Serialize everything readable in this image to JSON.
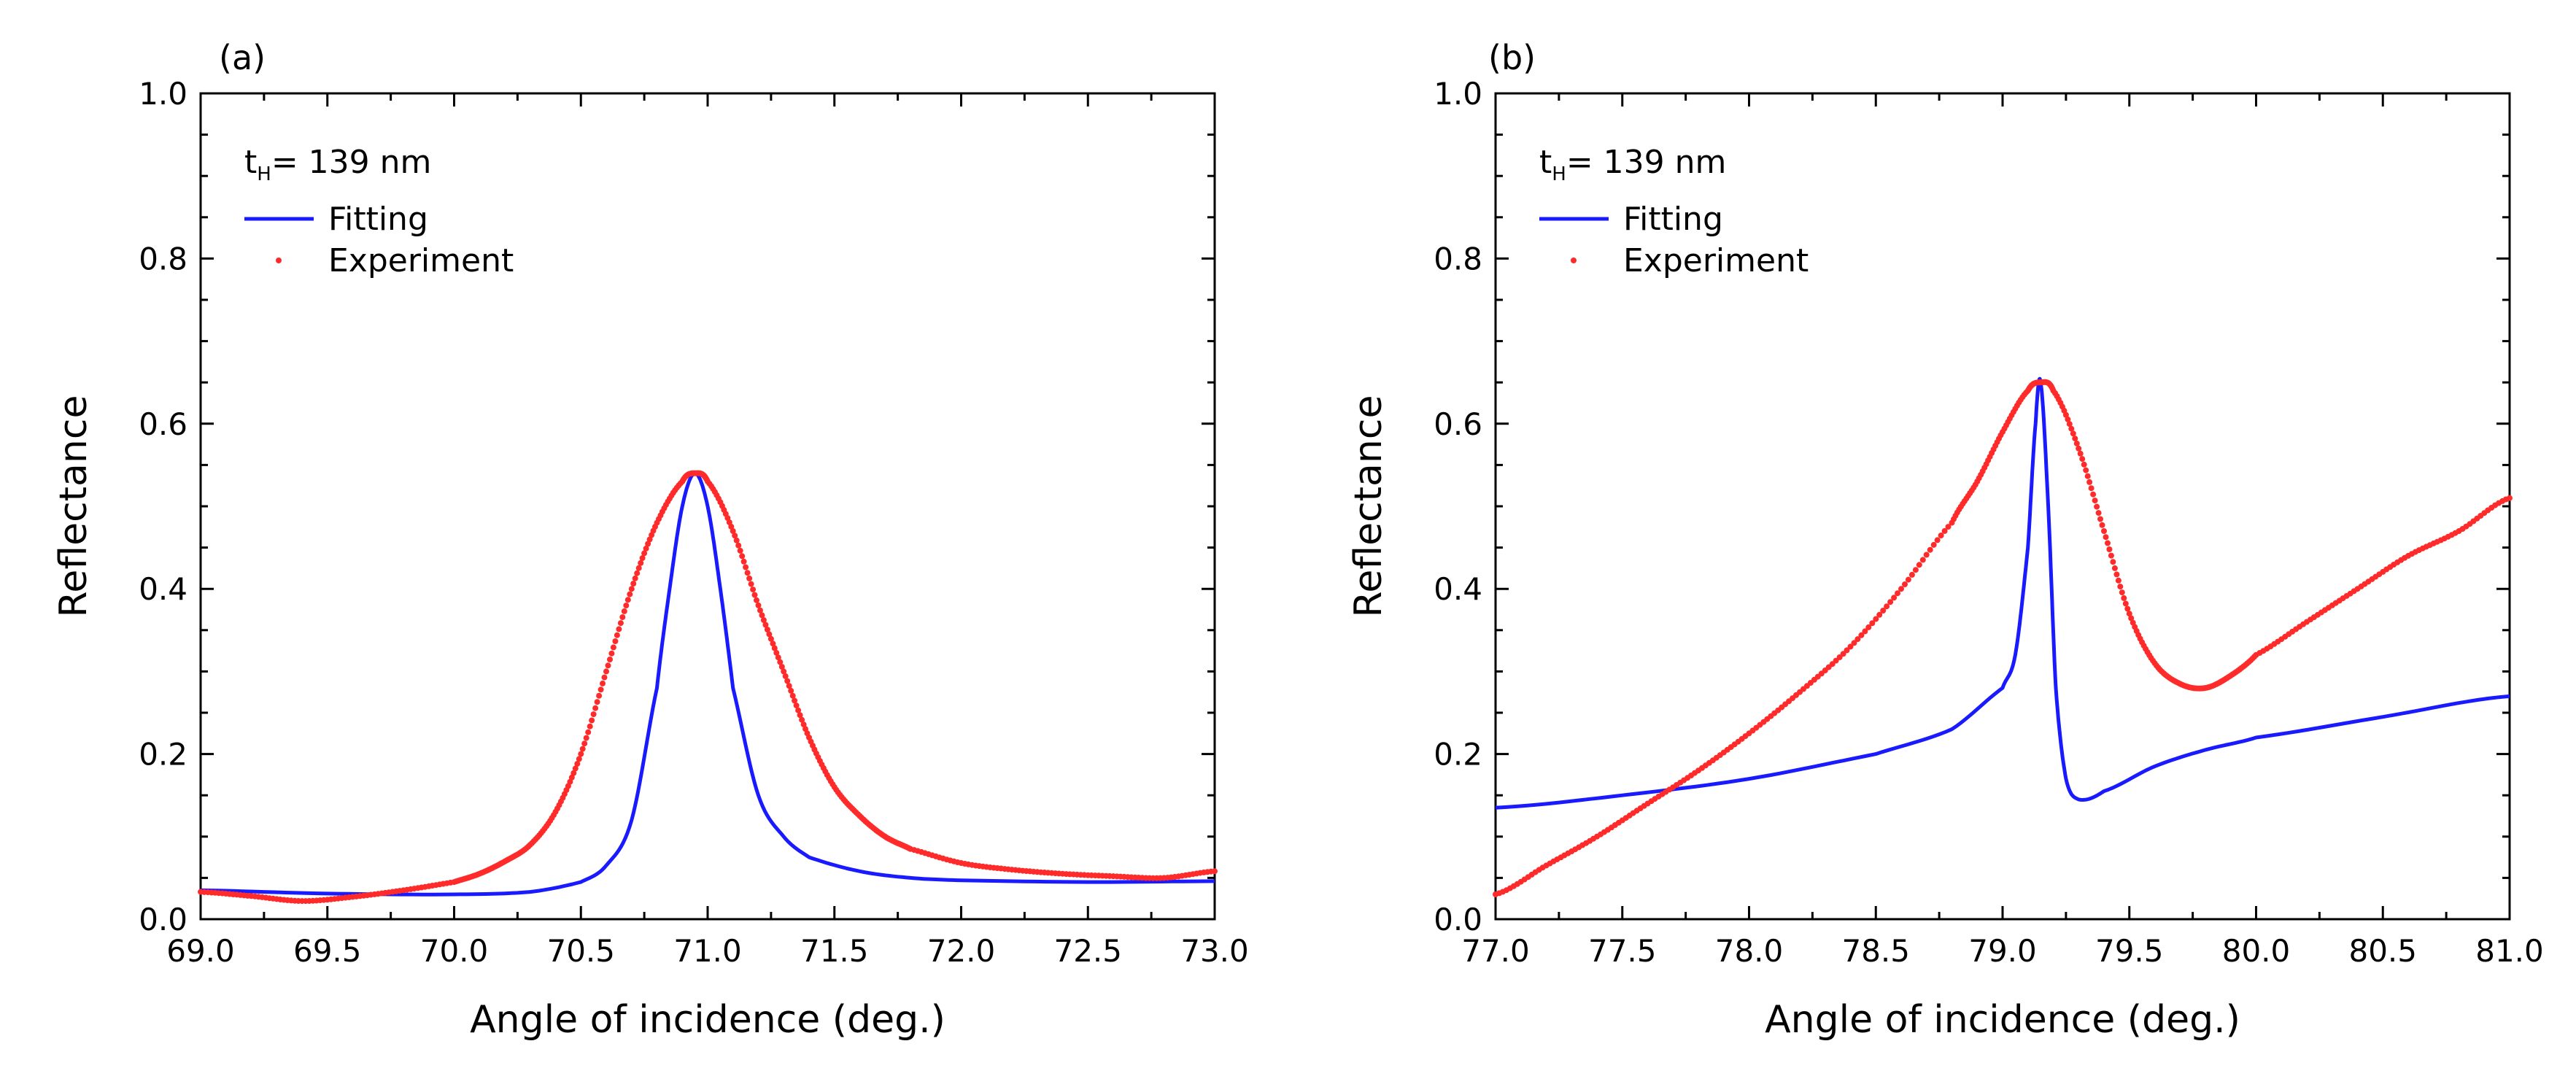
{
  "chart_data": [
    {
      "type": "line",
      "panel_label": "(a)",
      "annotation": {
        "prefix": "t",
        "subscript": "H",
        "suffix": "= 139 nm"
      },
      "xlabel": "Angle of incidence (deg.)",
      "ylabel": "Reflectance",
      "xlim": [
        69.0,
        73.0
      ],
      "ylim": [
        0.0,
        1.0
      ],
      "xticks": [
        "69.0",
        "69.5",
        "70.0",
        "70.5",
        "71.0",
        "71.5",
        "72.0",
        "72.5",
        "73.0"
      ],
      "yticks": [
        "0.0",
        "0.2",
        "0.4",
        "0.6",
        "0.8",
        "1.0"
      ],
      "legend_position": "top-left",
      "series": [
        {
          "name": "Fitting",
          "style": "line",
          "color": "#1a1aff",
          "x": [
            69.0,
            69.5,
            70.0,
            70.3,
            70.5,
            70.6,
            70.7,
            70.8,
            70.85,
            70.9,
            70.95,
            71.0,
            71.05,
            71.1,
            71.2,
            71.3,
            71.4,
            71.6,
            71.8,
            72.0,
            72.5,
            73.0
          ],
          "y": [
            0.035,
            0.031,
            0.03,
            0.033,
            0.045,
            0.065,
            0.12,
            0.28,
            0.4,
            0.5,
            0.54,
            0.5,
            0.4,
            0.28,
            0.15,
            0.1,
            0.075,
            0.058,
            0.05,
            0.047,
            0.045,
            0.046
          ]
        },
        {
          "name": "Experiment",
          "style": "dots",
          "color": "#ff2a2a",
          "x": [
            69.0,
            69.2,
            69.4,
            69.6,
            69.8,
            70.0,
            70.1,
            70.2,
            70.3,
            70.4,
            70.5,
            70.6,
            70.7,
            70.8,
            70.9,
            70.95,
            71.0,
            71.1,
            71.2,
            71.3,
            71.4,
            71.5,
            71.6,
            71.7,
            71.8,
            72.0,
            72.2,
            72.4,
            72.6,
            72.8,
            73.0
          ],
          "y": [
            0.033,
            0.028,
            0.022,
            0.027,
            0.035,
            0.045,
            0.055,
            0.07,
            0.09,
            0.13,
            0.2,
            0.3,
            0.4,
            0.48,
            0.53,
            0.54,
            0.53,
            0.47,
            0.38,
            0.3,
            0.22,
            0.16,
            0.125,
            0.1,
            0.085,
            0.068,
            0.06,
            0.055,
            0.052,
            0.05,
            0.058
          ]
        }
      ]
    },
    {
      "type": "line",
      "panel_label": "(b)",
      "annotation": {
        "prefix": "t",
        "subscript": "H",
        "suffix": "= 139 nm"
      },
      "xlabel": "Angle of incidence (deg.)",
      "ylabel": "Reflectance",
      "xlim": [
        77.0,
        81.0
      ],
      "ylim": [
        0.0,
        1.0
      ],
      "xticks": [
        "77.0",
        "77.5",
        "78.0",
        "78.5",
        "79.0",
        "79.5",
        "80.0",
        "80.5",
        "81.0"
      ],
      "yticks": [
        "0.0",
        "0.2",
        "0.4",
        "0.6",
        "0.8",
        "1.0"
      ],
      "legend_position": "top-left",
      "series": [
        {
          "name": "Fitting",
          "style": "line",
          "color": "#1a1aff",
          "x": [
            77.0,
            77.5,
            78.0,
            78.5,
            78.8,
            79.0,
            79.05,
            79.1,
            79.13,
            79.15,
            79.18,
            79.21,
            79.25,
            79.3,
            79.4,
            79.6,
            79.8,
            80.0,
            80.5,
            81.0
          ],
          "y": [
            0.135,
            0.15,
            0.17,
            0.2,
            0.23,
            0.28,
            0.32,
            0.45,
            0.6,
            0.65,
            0.5,
            0.28,
            0.17,
            0.145,
            0.155,
            0.185,
            0.205,
            0.22,
            0.245,
            0.27
          ]
        },
        {
          "name": "Experiment",
          "style": "dots",
          "color": "#ff2a2a",
          "x": [
            77.0,
            77.2,
            77.4,
            77.6,
            77.8,
            78.0,
            78.2,
            78.4,
            78.6,
            78.8,
            78.9,
            79.0,
            79.1,
            79.15,
            79.2,
            79.3,
            79.4,
            79.5,
            79.6,
            79.7,
            79.8,
            79.9,
            80.0,
            80.2,
            80.4,
            80.6,
            80.8,
            81.0
          ],
          "y": [
            0.03,
            0.065,
            0.1,
            0.14,
            0.18,
            0.225,
            0.275,
            0.33,
            0.4,
            0.48,
            0.53,
            0.59,
            0.64,
            0.65,
            0.64,
            0.57,
            0.47,
            0.37,
            0.31,
            0.285,
            0.28,
            0.295,
            0.32,
            0.36,
            0.4,
            0.44,
            0.47,
            0.51
          ]
        }
      ]
    }
  ]
}
